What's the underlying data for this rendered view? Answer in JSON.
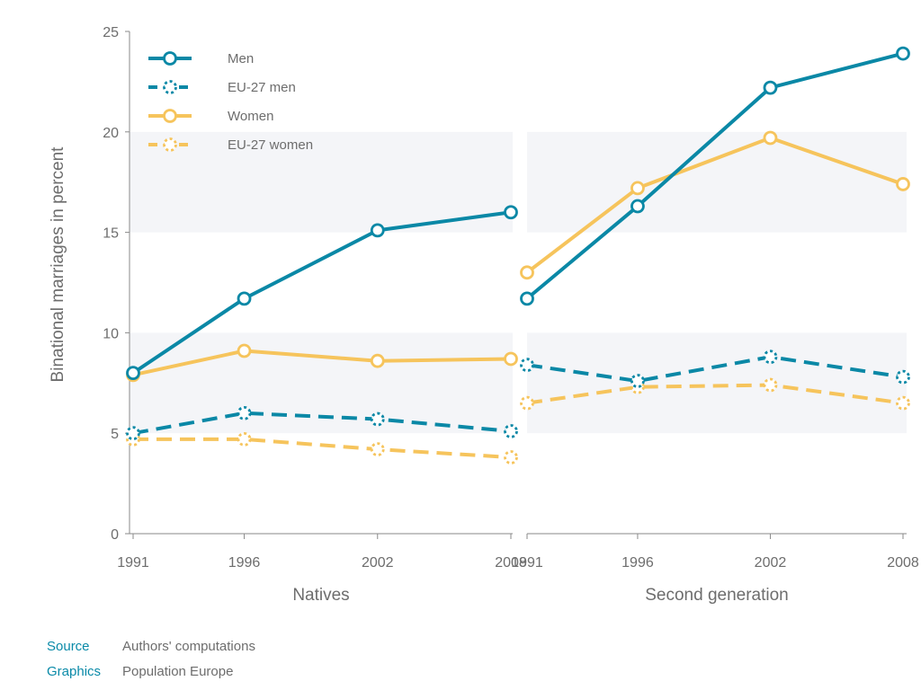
{
  "chart_data": {
    "type": "line",
    "ylabel": "Binational marriages in percent",
    "ylim": [
      0,
      25
    ],
    "yticks": [
      0,
      5,
      10,
      15,
      20,
      25
    ],
    "grid": "alternating bands",
    "legend": {
      "placement": "top-left"
    },
    "categories": [
      "1991",
      "1996",
      "2002",
      "2008"
    ],
    "panels": [
      {
        "label": "Natives",
        "series": [
          {
            "name": "Men",
            "values": [
              8.0,
              11.7,
              15.1,
              16.0
            ]
          },
          {
            "name": "EU-27 men",
            "values": [
              5.0,
              6.0,
              5.7,
              5.1
            ]
          },
          {
            "name": "Women",
            "values": [
              7.9,
              9.1,
              8.6,
              8.7
            ]
          },
          {
            "name": "EU-27 women",
            "values": [
              4.7,
              4.7,
              4.2,
              3.8
            ]
          }
        ]
      },
      {
        "label": "Second generation",
        "series": [
          {
            "name": "Men",
            "values": [
              11.7,
              16.3,
              22.2,
              23.9
            ]
          },
          {
            "name": "EU-27 men",
            "values": [
              8.4,
              7.6,
              8.8,
              7.8
            ]
          },
          {
            "name": "Women",
            "values": [
              13.0,
              17.2,
              19.7,
              17.4
            ]
          },
          {
            "name": "EU-27 women",
            "values": [
              6.5,
              7.3,
              7.4,
              6.5
            ]
          }
        ]
      }
    ],
    "series_styles": [
      {
        "name": "Men",
        "color": "#0a88a6",
        "dashed": false
      },
      {
        "name": "EU-27 men",
        "color": "#0a88a6",
        "dashed": true
      },
      {
        "name": "Women",
        "color": "#f6c45c",
        "dashed": false
      },
      {
        "name": "EU-27 women",
        "color": "#f6c45c",
        "dashed": true
      }
    ],
    "band_color": "#f4f5f8"
  },
  "footer": {
    "source_key": "Source",
    "source_value": "Authors' computations",
    "graphics_key": "Graphics",
    "graphics_value": "Population Europe"
  }
}
